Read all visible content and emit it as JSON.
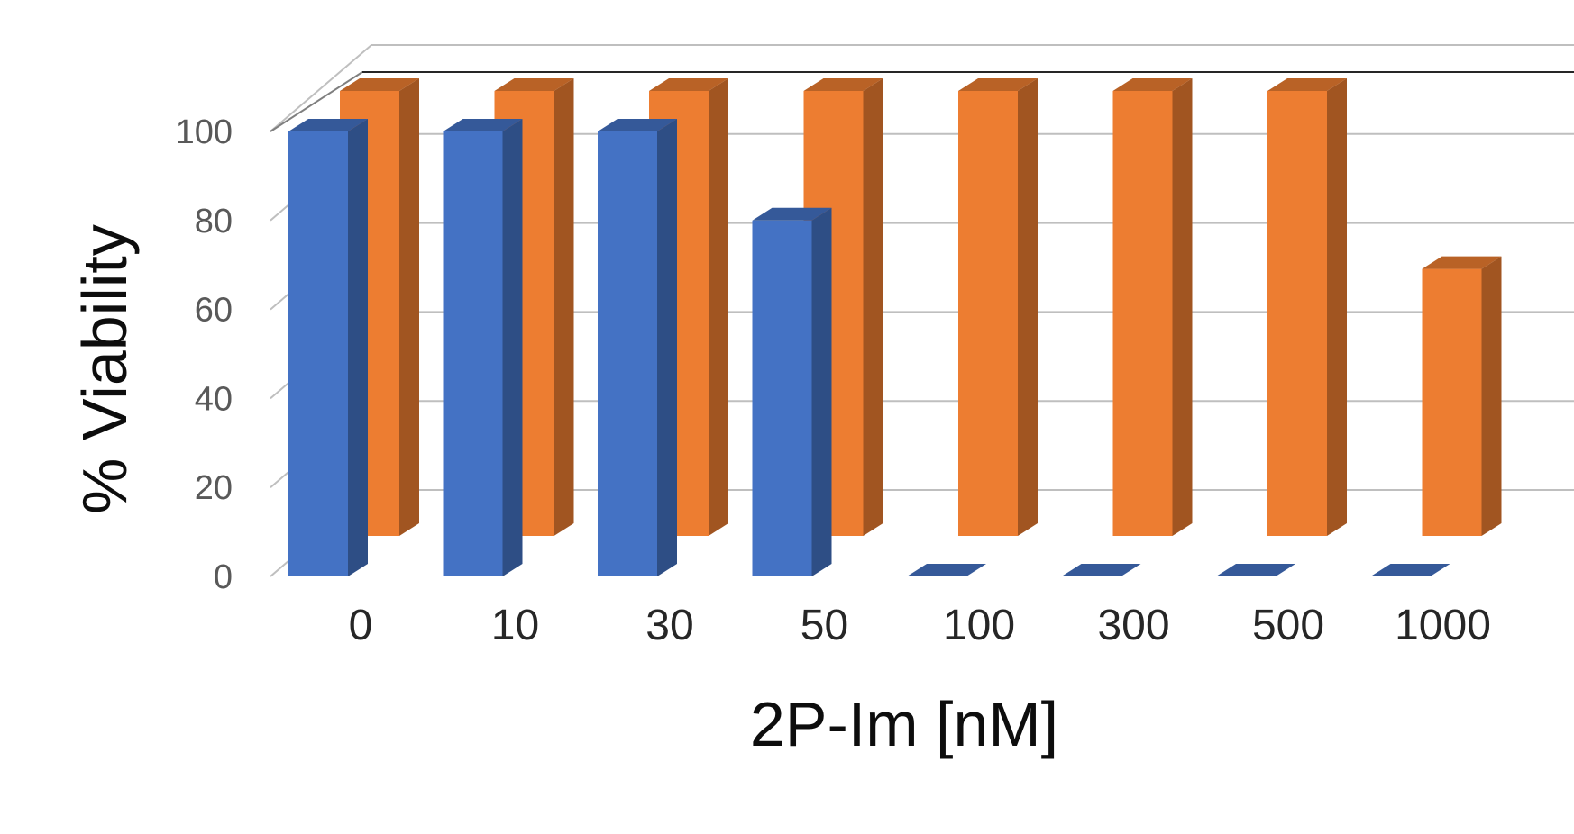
{
  "chart_data": {
    "type": "bar",
    "style": "3d-column",
    "categories": [
      "0",
      "10",
      "30",
      "50",
      "100",
      "300",
      "500",
      "1000"
    ],
    "series": [
      {
        "color": "#4472C4",
        "values": [
          100,
          100,
          100,
          80,
          0,
          0,
          0,
          0
        ]
      },
      {
        "color": "#ED7D31",
        "values": [
          100,
          100,
          100,
          100,
          100,
          100,
          100,
          60
        ]
      }
    ],
    "xlabel": "2P-Im [nM]",
    "ylabel": "% Viability",
    "ylim": [
      0,
      100
    ],
    "yticks": [
      "0",
      "20",
      "40",
      "60",
      "80",
      "100"
    ],
    "grid": true,
    "legend": "none"
  }
}
